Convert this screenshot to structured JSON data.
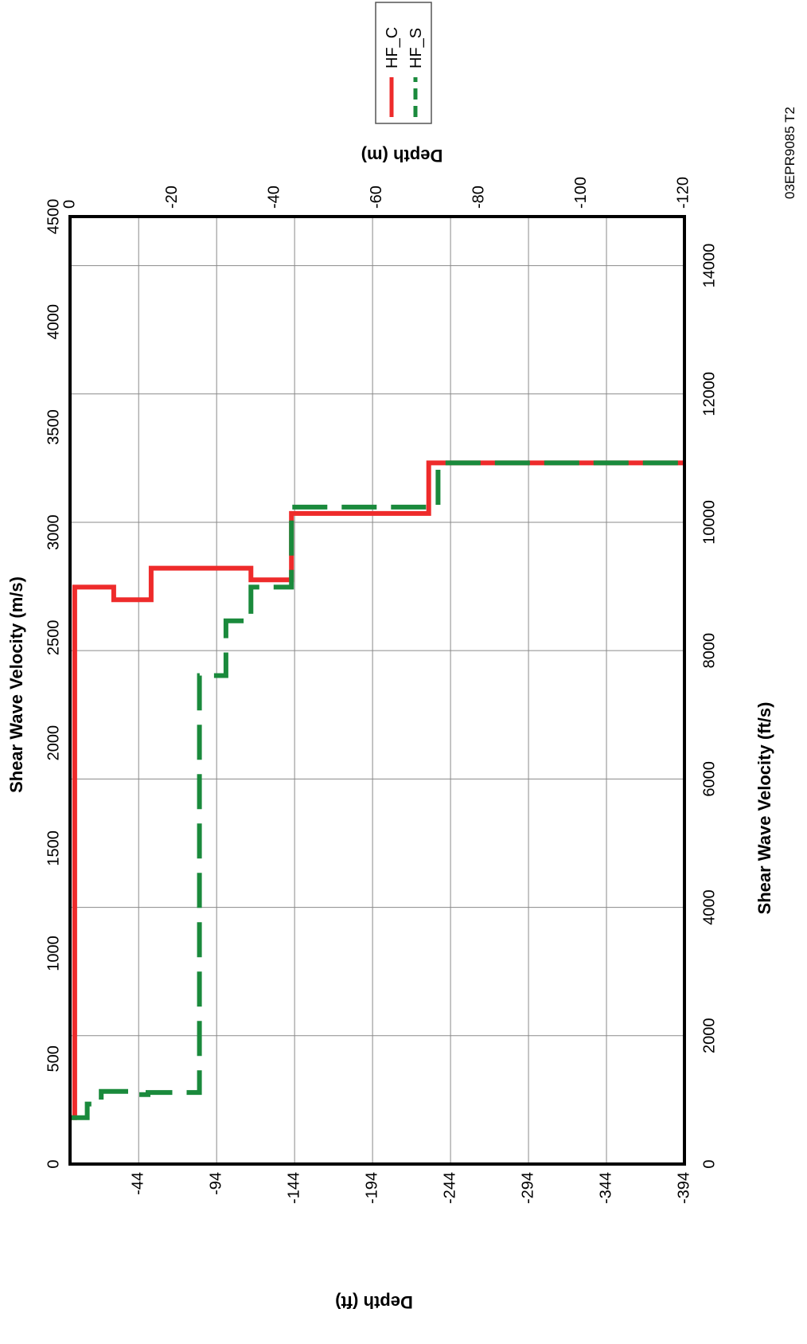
{
  "figure_id": "03EPR9085 T2",
  "chart_data": {
    "type": "line",
    "orientation": "rotated-90-ccw",
    "title": "",
    "ylabel_mps": "Shear Wave Velocity (m/s)",
    "ylabel_fps": "Shear Wave Velocity (ft/s)",
    "xlabel_ft": "Depth (ft)",
    "xlabel_m": "Depth (m)",
    "velocity_mps_ticks": [
      "0",
      "500",
      "1000",
      "1500",
      "2000",
      "2500",
      "3000",
      "3500",
      "4000",
      "4500"
    ],
    "velocity_fps_ticks": [
      "0",
      "2000",
      "4000",
      "6000",
      "8000",
      "10000",
      "12000",
      "14000"
    ],
    "depth_ft_ticks": [
      "-44",
      "-94",
      "-144",
      "-194",
      "-244",
      "-294",
      "-344",
      "-394"
    ],
    "depth_m_ticks": [
      "0",
      "-20",
      "-40",
      "-60",
      "-80",
      "-100",
      "-120"
    ],
    "velocity_mps_range": [
      0,
      4500
    ],
    "depth_ft_range": [
      0,
      -394
    ],
    "grid": true,
    "legend_position": "top-right",
    "series": [
      {
        "name": "HF_C",
        "color": "#ee2b2b",
        "dash": "solid",
        "points": [
          [
            0,
            220
          ],
          [
            -3,
            220
          ],
          [
            -3,
            2740
          ],
          [
            -28,
            2740
          ],
          [
            -28,
            2680
          ],
          [
            -52,
            2680
          ],
          [
            -52,
            2830
          ],
          [
            -116,
            2830
          ],
          [
            -116,
            2775
          ],
          [
            -142,
            2775
          ],
          [
            -142,
            3090
          ],
          [
            -230,
            3090
          ],
          [
            -230,
            3330
          ],
          [
            -394,
            3330
          ]
        ]
      },
      {
        "name": "HF_S",
        "color": "#1a8a3c",
        "dash": "dashed",
        "points": [
          [
            0,
            220
          ],
          [
            -11,
            220
          ],
          [
            -11,
            285
          ],
          [
            -20,
            285
          ],
          [
            -20,
            345
          ],
          [
            -40,
            345
          ],
          [
            -40,
            330
          ],
          [
            -50,
            330
          ],
          [
            -50,
            340
          ],
          [
            -83,
            340
          ],
          [
            -83,
            2320
          ],
          [
            -100,
            2320
          ],
          [
            -100,
            2580
          ],
          [
            -116,
            2580
          ],
          [
            -116,
            2740
          ],
          [
            -142,
            2740
          ],
          [
            -142,
            3120
          ],
          [
            -236,
            3120
          ],
          [
            -236,
            3330
          ],
          [
            -394,
            3330
          ]
        ]
      }
    ]
  }
}
